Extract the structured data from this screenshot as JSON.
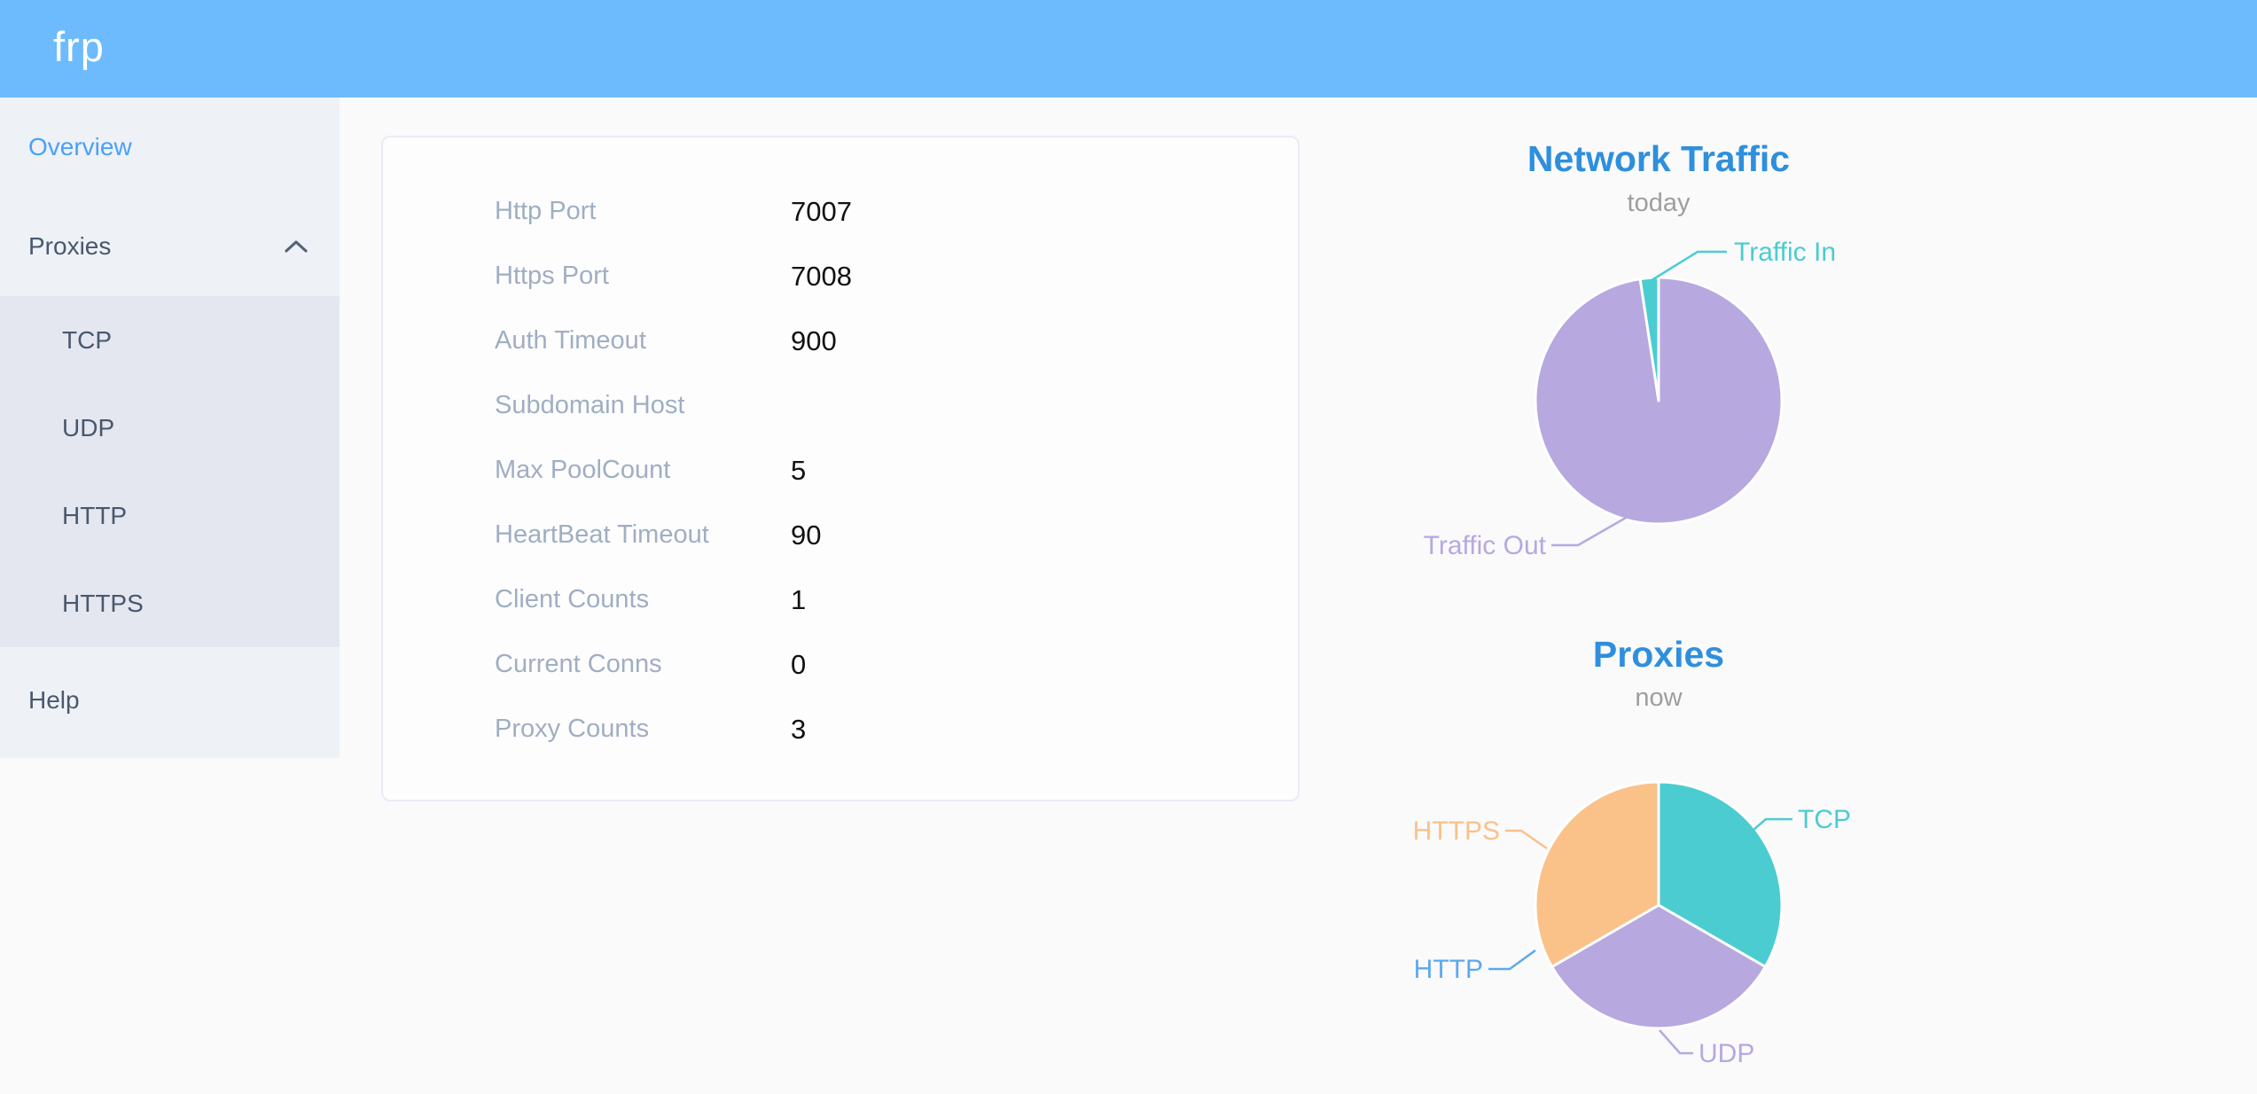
{
  "header": {
    "logo_text": "frp",
    "background": "#6dbbfc"
  },
  "sidebar": {
    "background": "#eef1f6",
    "submenu_background": "#e4e7f0",
    "active_color": "#49a1f6",
    "text_color": "#49586d",
    "overview_label": "Overview",
    "proxies_label": "Proxies",
    "proxies_expanded": true,
    "proxies_children": [
      "TCP",
      "UDP",
      "HTTP",
      "HTTPS"
    ],
    "help_label": "Help"
  },
  "overview_table": {
    "rows": [
      {
        "label": "Http Port",
        "value": "7007"
      },
      {
        "label": "Https Port",
        "value": "7008"
      },
      {
        "label": "Auth Timeout",
        "value": "900"
      },
      {
        "label": "Subdomain Host",
        "value": ""
      },
      {
        "label": "Max PoolCount",
        "value": "5"
      },
      {
        "label": "HeartBeat Timeout",
        "value": "90"
      },
      {
        "label": "Client Counts",
        "value": "1"
      },
      {
        "label": "Current Conns",
        "value": "0"
      },
      {
        "label": "Proxy Counts",
        "value": "3"
      }
    ]
  },
  "chart_data": [
    {
      "type": "pie",
      "title": "Network Traffic",
      "subtitle": "today",
      "title_color": "#2e8fdd",
      "subtitle_color": "#9e9e9e",
      "legend": "none",
      "order": "clockwise-from-12-oclock",
      "values_are_percent_estimates": true,
      "series": [
        {
          "name": "Traffic Out",
          "value": 97.6,
          "color": "#b7a8e0"
        },
        {
          "name": "Traffic In",
          "value": 2.4,
          "color": "#4bccd1"
        }
      ]
    },
    {
      "type": "pie",
      "title": "Proxies",
      "subtitle": "now",
      "title_color": "#2e8fdd",
      "subtitle_color": "#9e9e9e",
      "legend": "none",
      "order": "clockwise-from-12-oclock",
      "series": [
        {
          "name": "TCP",
          "value": 1,
          "color": "#4bccd1"
        },
        {
          "name": "UDP",
          "value": 1,
          "color": "#b7a8e0"
        },
        {
          "name": "HTTP",
          "value": 0,
          "color": "#5ca9ee"
        },
        {
          "name": "HTTPS",
          "value": 1,
          "color": "#fac189"
        }
      ]
    }
  ]
}
